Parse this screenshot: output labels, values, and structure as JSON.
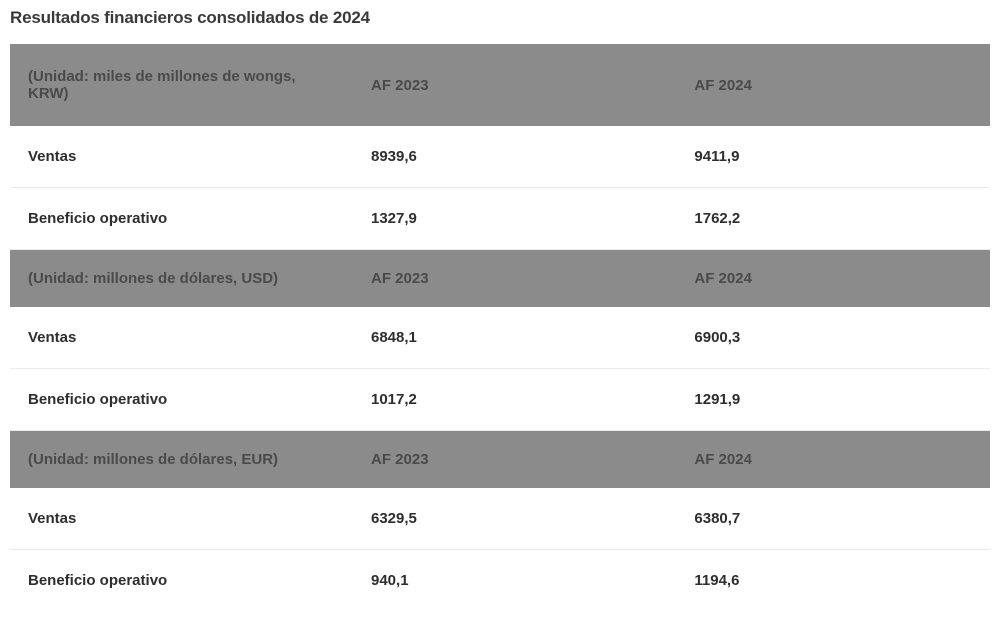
{
  "title": "Resultados financieros consolidados de 2024",
  "columns": {
    "fy2023": "AF 2023",
    "fy2024": "AF 2024"
  },
  "sections": [
    {
      "unit": "(Unidad: miles de millones de wongs, KRW)",
      "rows": [
        {
          "label": "Ventas",
          "fy2023": "8939,6",
          "fy2024": "9411,9"
        },
        {
          "label": "Beneficio operativo",
          "fy2023": "1327,9",
          "fy2024": "1762,2"
        }
      ]
    },
    {
      "unit": "(Unidad: millones de dólares, USD)",
      "rows": [
        {
          "label": "Ventas",
          "fy2023": "6848,1",
          "fy2024": "6900,3"
        },
        {
          "label": "Beneficio operativo",
          "fy2023": "1017,2",
          "fy2024": "1291,9"
        }
      ]
    },
    {
      "unit": "(Unidad: millones de dólares, EUR)",
      "rows": [
        {
          "label": "Ventas",
          "fy2023": "6329,5",
          "fy2024": "6380,7"
        },
        {
          "label": "Beneficio operativo",
          "fy2023": "940,1",
          "fy2024": "1194,6"
        }
      ]
    }
  ],
  "style": {
    "header_bg": "#8b8b8b",
    "header_text": "#4a4a4a",
    "row_bg": "#ffffff",
    "row_text": "#2e2e2e",
    "row_border": "#e9e9e9",
    "title_color": "#3a3a3a",
    "font_size_title": 17,
    "font_size_cell": 15,
    "font_weight": 700
  }
}
